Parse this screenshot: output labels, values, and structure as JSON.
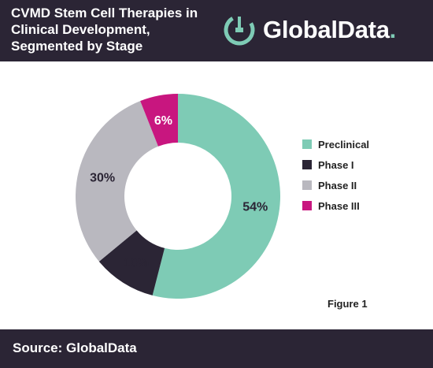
{
  "header": {
    "title_lines": [
      "CVMD Stem Cell Therapies in",
      "Clinical Development,",
      "Segmented by Stage"
    ],
    "logo_text": "GlobalData",
    "logo_dot": "."
  },
  "figure_label": "Figure 1",
  "footer": {
    "source": "Source: GlobalData"
  },
  "colors": {
    "header_bg": "#2b2535",
    "preclinical": "#7ecbb5",
    "phase_1": "#2b2535",
    "phase_2": "#b9b8bf",
    "phase_3": "#c8167f"
  },
  "chart_data": {
    "type": "pie",
    "title": "CVMD Stem Cell Therapies in Clinical Development, Segmented by Stage",
    "donut": true,
    "categories": [
      "Preclinical",
      "Phase I",
      "Phase II",
      "Phase III"
    ],
    "values": [
      54,
      10,
      30,
      6
    ],
    "labels": [
      "54%",
      "10%",
      "30%",
      "6%"
    ],
    "colors": [
      "#7ecbb5",
      "#2b2535",
      "#b9b8bf",
      "#c8167f"
    ],
    "label_colors": [
      "#2b2535",
      "#2b2535",
      "#2b2535",
      "#ffffff"
    ],
    "legend_position": "right",
    "start": "top",
    "direction": "clockwise"
  }
}
